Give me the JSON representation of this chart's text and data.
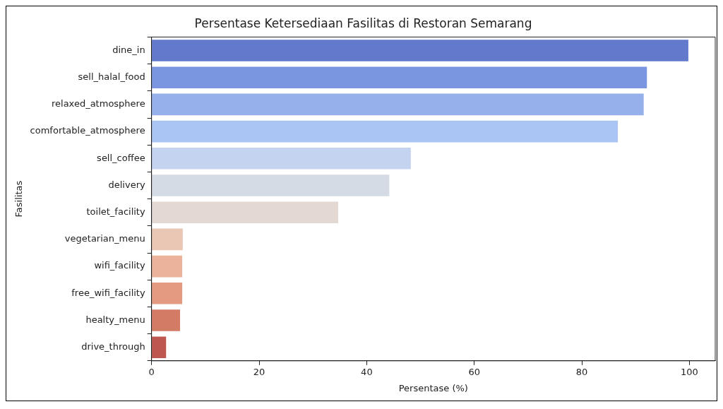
{
  "chart_data": {
    "type": "bar",
    "orientation": "horizontal",
    "title": "Persentase Ketersediaan Fasilitas di Restoran Semarang",
    "xlabel": "Persentase (%)",
    "ylabel": "Fasilitas",
    "categories": [
      "dine_in",
      "sell_halal_food",
      "relaxed_atmosphere",
      "comfortable_atmosphere",
      "sell_coffee",
      "delivery",
      "toilet_facility",
      "vegetarian_menu",
      "wifi_facility",
      "free_wifi_facility",
      "healty_menu",
      "drive_through"
    ],
    "values": [
      99.8,
      92.1,
      91.5,
      86.7,
      48.2,
      44.2,
      34.7,
      5.8,
      5.7,
      5.7,
      5.3,
      2.7
    ],
    "colors": [
      "#6279cc",
      "#7b96e0",
      "#96b0ec",
      "#aac4f4",
      "#c4d3ef",
      "#d4dbe4",
      "#e3d8d2",
      "#eac7b5",
      "#ebb39b",
      "#e39a80",
      "#d47b66",
      "#bd574f"
    ],
    "xlim": [
      0,
      104.8
    ],
    "xticks": [
      0,
      20,
      40,
      60,
      80,
      100
    ],
    "grid": false,
    "legend": false
  }
}
